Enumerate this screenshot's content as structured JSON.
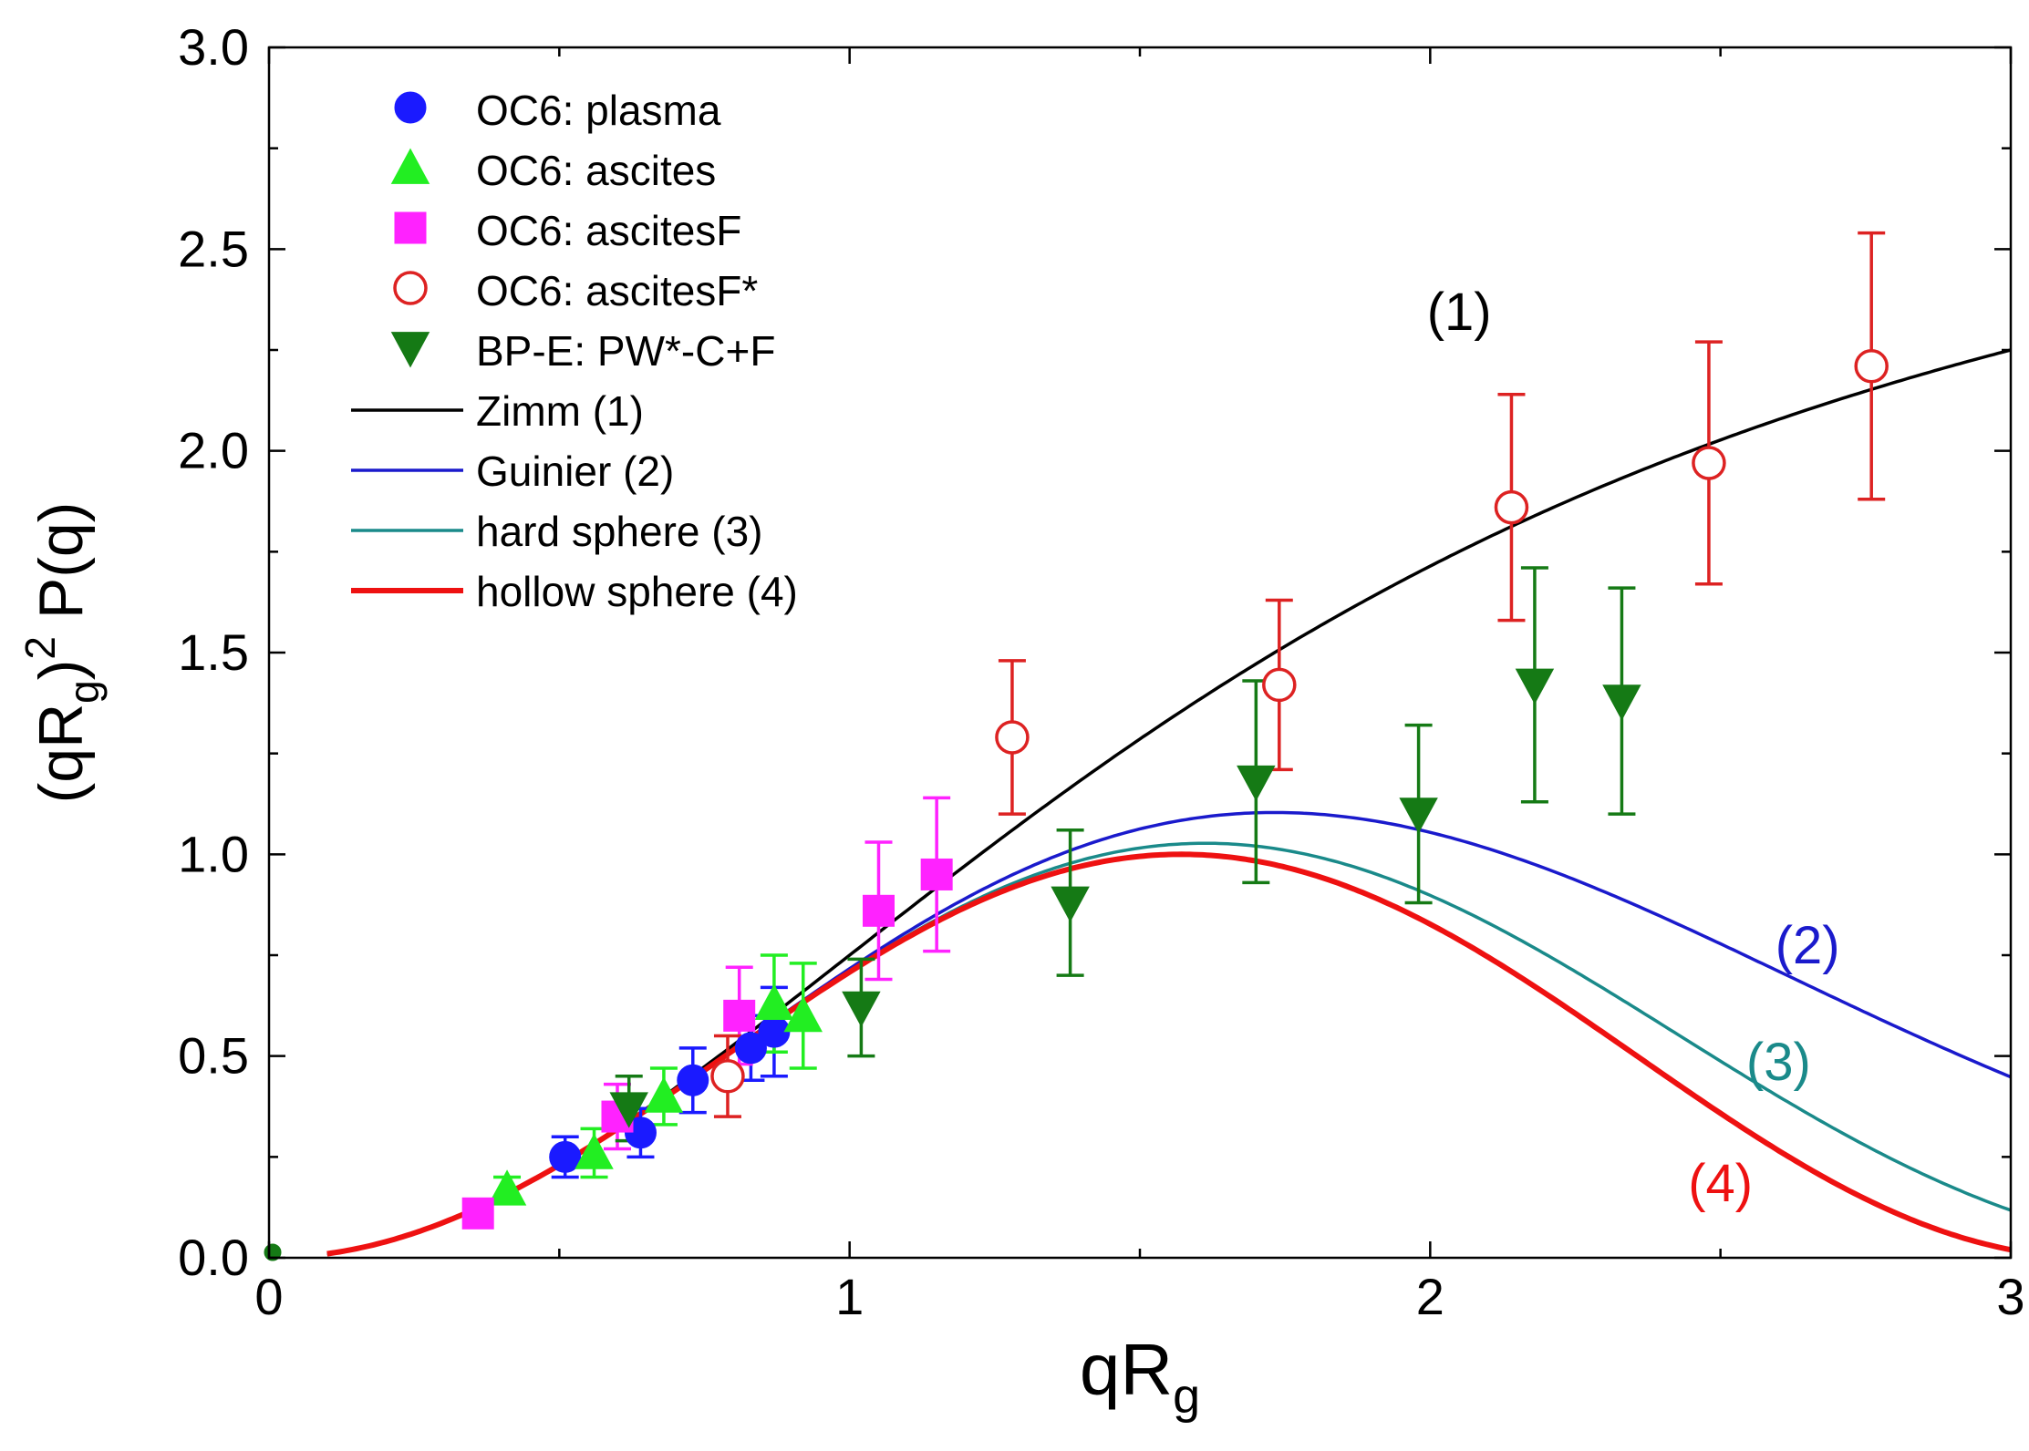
{
  "chart_data": {
    "type": "scatter",
    "xlabel": "qR",
    "xlabel_sub": "g",
    "ylabel_parts": [
      "(qR",
      "g",
      ")",
      "2",
      " P(q)"
    ],
    "xlim": [
      0,
      3
    ],
    "ylim": [
      0,
      3
    ],
    "x_ticks": [
      0,
      1,
      2,
      3
    ],
    "x_tick_labels": [
      "0",
      "1",
      "2",
      "3"
    ],
    "y_ticks": [
      0,
      0.5,
      1,
      1.5,
      2,
      2.5,
      3
    ],
    "y_tick_labels": [
      "0.0",
      "0.5",
      "1.0",
      "1.5",
      "2.0",
      "2.5",
      "3.0"
    ],
    "legend_position": "top-left",
    "series": [
      {
        "name": "OC6: plasma",
        "marker": "circle",
        "filled": true,
        "color": "#1a1aff",
        "points": [
          {
            "x": 0.51,
            "y": 0.25,
            "err": 0.05
          },
          {
            "x": 0.64,
            "y": 0.31,
            "err": 0.06
          },
          {
            "x": 0.73,
            "y": 0.44,
            "err": 0.08
          },
          {
            "x": 0.83,
            "y": 0.52,
            "err": 0.08
          },
          {
            "x": 0.87,
            "y": 0.56,
            "err": 0.11
          }
        ]
      },
      {
        "name": "OC6: ascites",
        "marker": "triangle-up",
        "filled": true,
        "color": "#22ee22",
        "points": [
          {
            "x": 0.41,
            "y": 0.17,
            "err": 0.03
          },
          {
            "x": 0.56,
            "y": 0.26,
            "err": 0.06
          },
          {
            "x": 0.68,
            "y": 0.4,
            "err": 0.07
          },
          {
            "x": 0.87,
            "y": 0.63,
            "err": 0.12
          },
          {
            "x": 0.92,
            "y": 0.6,
            "err": 0.13
          }
        ]
      },
      {
        "name": "OC6: ascitesF",
        "marker": "square",
        "filled": true,
        "color": "#ff22ff",
        "points": [
          {
            "x": 0.36,
            "y": 0.11,
            "err": 0.03
          },
          {
            "x": 0.6,
            "y": 0.35,
            "err": 0.08
          },
          {
            "x": 0.81,
            "y": 0.6,
            "err": 0.12
          },
          {
            "x": 1.05,
            "y": 0.86,
            "err": 0.17
          },
          {
            "x": 1.15,
            "y": 0.95,
            "err": 0.19
          }
        ]
      },
      {
        "name": "OC6: ascitesF*",
        "marker": "circle",
        "filled": false,
        "color": "#dd2222",
        "points": [
          {
            "x": 0.79,
            "y": 0.45,
            "err": 0.1
          },
          {
            "x": 1.28,
            "y": 1.29,
            "err": 0.19
          },
          {
            "x": 1.74,
            "y": 1.42,
            "err": 0.21
          },
          {
            "x": 2.14,
            "y": 1.86,
            "err": 0.28
          },
          {
            "x": 2.48,
            "y": 1.97,
            "err": 0.3
          },
          {
            "x": 2.76,
            "y": 2.21,
            "err": 0.33
          }
        ]
      },
      {
        "name": "BP-E: PW*-C+F",
        "marker": "triangle-down",
        "filled": true,
        "color": "#157a15",
        "points": [
          {
            "x": 0.62,
            "y": 0.37,
            "err": 0.08
          },
          {
            "x": 1.02,
            "y": 0.62,
            "err": 0.12
          },
          {
            "x": 1.38,
            "y": 0.88,
            "err": 0.18
          },
          {
            "x": 1.7,
            "y": 1.18,
            "err": 0.25
          },
          {
            "x": 1.98,
            "y": 1.1,
            "err": 0.22
          },
          {
            "x": 2.18,
            "y": 1.42,
            "err": 0.29
          },
          {
            "x": 2.33,
            "y": 1.38,
            "err": 0.28
          }
        ]
      }
    ],
    "curves": [
      {
        "name": "Zimm (1)",
        "color": "#000000",
        "label": "(1)",
        "model": "zimm"
      },
      {
        "name": "Guinier (2)",
        "color": "#1a1acc",
        "label": "(2)",
        "model": "guinier"
      },
      {
        "name": "hard sphere (3)",
        "color": "#1a8a8a",
        "label": "(3)",
        "model": "hard_sphere"
      },
      {
        "name": "hollow sphere (4)",
        "color": "#ee1111",
        "label": "(4)",
        "model": "hollow_sphere"
      }
    ]
  }
}
